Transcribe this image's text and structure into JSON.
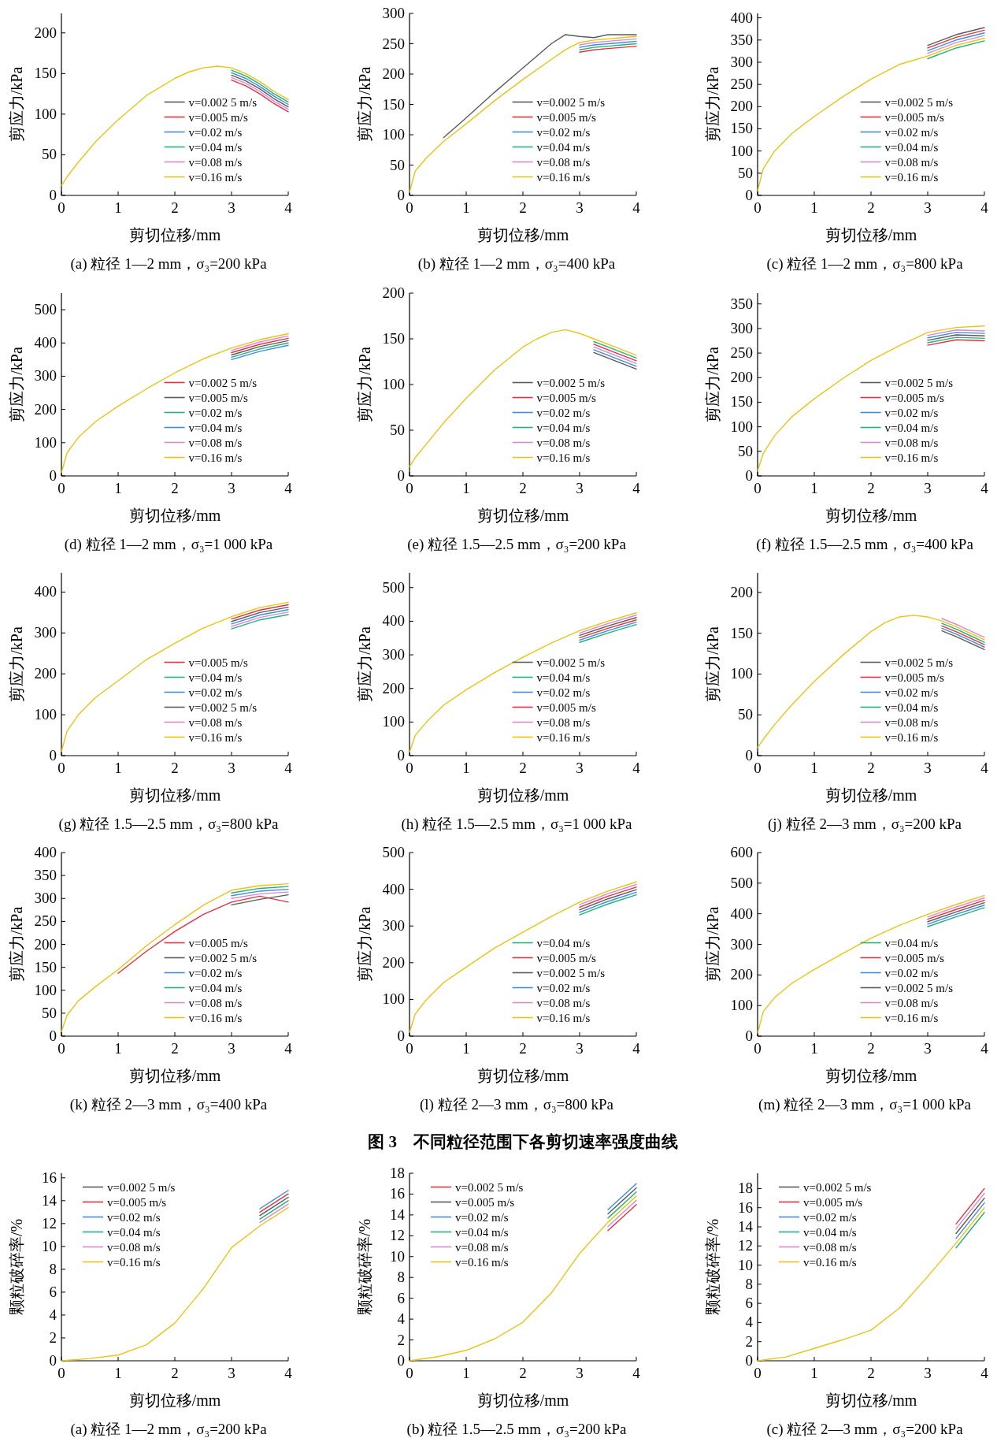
{
  "chart_data": [
    {
      "type": "line",
      "title": "(a) 粒径 1—2 mm，σ₃=200 kPa",
      "xlabel": "剪切位移/mm",
      "ylabel": "剪应力/kPa",
      "xlim": [
        0,
        4
      ],
      "ylim": [
        0,
        224
      ],
      "xticks": [
        0,
        1,
        2,
        3,
        4
      ],
      "yticks": [
        0,
        50,
        100,
        150,
        200
      ],
      "legend": "bottom right",
      "x": [
        0,
        0.1,
        0.3,
        0.6,
        1,
        1.5,
        2,
        2.25,
        2.5,
        2.75,
        3,
        3.25,
        3.5,
        3.75,
        4
      ],
      "series": [
        {
          "name": "v=0.002 5 m/s",
          "color": "#5a5a5a",
          "values": [
            null,
            null,
            null,
            null,
            null,
            null,
            null,
            null,
            null,
            null,
            148,
            141,
            131,
            119,
            109
          ]
        },
        {
          "name": "v=0.005 m/s",
          "color": "#e8303c",
          "values": [
            null,
            null,
            null,
            null,
            null,
            null,
            null,
            null,
            null,
            null,
            142,
            135,
            125,
            113,
            103
          ]
        },
        {
          "name": "v=0.02 m/s",
          "color": "#3c8ce0",
          "values": [
            null,
            null,
            null,
            null,
            null,
            null,
            null,
            null,
            null,
            null,
            151,
            144,
            134,
            122,
            112
          ]
        },
        {
          "name": "v=0.04 m/s",
          "color": "#20b27a",
          "values": [
            null,
            null,
            null,
            null,
            null,
            null,
            null,
            null,
            null,
            null,
            154,
            147,
            137,
            125,
            115
          ]
        },
        {
          "name": "v=0.08 m/s",
          "color": "#d88ad0",
          "values": [
            null,
            null,
            null,
            null,
            null,
            null,
            null,
            null,
            null,
            null,
            145,
            138,
            128,
            116,
            106
          ]
        },
        {
          "name": "v=0.16 m/s",
          "color": "#e8c414",
          "values": [
            12,
            23,
            41,
            66,
            93,
            123,
            144,
            152,
            157,
            159,
            157,
            150,
            140,
            128,
            118
          ]
        }
      ]
    },
    {
      "type": "line",
      "title": "(b) 粒径 1—2 mm，σ₃=400 kPa",
      "xlabel": "剪切位移/mm",
      "ylabel": "剪应力/kPa",
      "xlim": [
        0,
        4
      ],
      "ylim": [
        0,
        300
      ],
      "xticks": [
        0,
        1,
        2,
        3,
        4
      ],
      "yticks": [
        0,
        50,
        100,
        150,
        200,
        250,
        300
      ],
      "legend": "bottom right",
      "x": [
        0,
        0.1,
        0.3,
        0.6,
        1,
        1.5,
        2,
        2.5,
        2.75,
        3,
        3.25,
        3.5,
        3.75,
        4
      ],
      "series": [
        {
          "name": "v=0.002 5 m/s",
          "color": "#5a5a5a",
          "values": [
            null,
            null,
            null,
            95,
            128,
            170,
            210,
            250,
            265,
            262,
            260,
            265,
            265,
            265
          ]
        },
        {
          "name": "v=0.005 m/s",
          "color": "#e8303c",
          "values": [
            null,
            null,
            null,
            null,
            null,
            null,
            null,
            null,
            null,
            236,
            240,
            242,
            244,
            246
          ]
        },
        {
          "name": "v=0.02 m/s",
          "color": "#3c8ce0",
          "values": [
            null,
            null,
            null,
            null,
            null,
            null,
            null,
            null,
            null,
            244,
            248,
            250,
            252,
            254
          ]
        },
        {
          "name": "v=0.04 m/s",
          "color": "#20b27a",
          "values": [
            null,
            null,
            null,
            null,
            null,
            null,
            null,
            null,
            null,
            240,
            244,
            246,
            248,
            250
          ]
        },
        {
          "name": "v=0.08 m/s",
          "color": "#d88ad0",
          "values": [
            null,
            null,
            null,
            null,
            null,
            null,
            null,
            null,
            null,
            248,
            252,
            254,
            256,
            258
          ]
        },
        {
          "name": "v=0.16 m/s",
          "color": "#e8c414",
          "values": [
            5,
            40,
            62,
            89,
            118,
            156,
            191,
            224,
            240,
            252,
            256,
            258,
            260,
            262
          ]
        }
      ]
    },
    {
      "type": "line",
      "title": "(c) 粒径 1—2 mm，σ₃=800 kPa",
      "xlabel": "剪切位移/mm",
      "ylabel": "剪应力/kPa",
      "xlim": [
        0,
        4
      ],
      "ylim": [
        0,
        410
      ],
      "xticks": [
        0,
        1,
        2,
        3,
        4
      ],
      "yticks": [
        0,
        50,
        100,
        150,
        200,
        250,
        300,
        350,
        400
      ],
      "legend": "bottom right",
      "x": [
        0,
        0.1,
        0.3,
        0.6,
        1,
        1.5,
        2,
        2.5,
        3,
        3.5,
        4
      ],
      "series": [
        {
          "name": "v=0.002 5 m/s",
          "color": "#5a5a5a",
          "values": [
            null,
            null,
            null,
            null,
            null,
            null,
            null,
            null,
            338,
            362,
            378
          ]
        },
        {
          "name": "v=0.005 m/s",
          "color": "#e8303c",
          "values": [
            null,
            null,
            null,
            null,
            null,
            null,
            null,
            null,
            332,
            356,
            372
          ]
        },
        {
          "name": "v=0.02 m/s",
          "color": "#3c8ce0",
          "values": [
            null,
            null,
            null,
            null,
            null,
            null,
            null,
            null,
            326,
            350,
            366
          ]
        },
        {
          "name": "v=0.04 m/s",
          "color": "#20b27a",
          "values": [
            null,
            null,
            null,
            null,
            null,
            null,
            null,
            null,
            308,
            332,
            348
          ]
        },
        {
          "name": "v=0.08 m/s",
          "color": "#d88ad0",
          "values": [
            null,
            null,
            null,
            null,
            null,
            null,
            null,
            null,
            320,
            344,
            360
          ]
        },
        {
          "name": "v=0.16 m/s",
          "color": "#e8c414",
          "values": [
            10,
            60,
            100,
            139,
            178,
            222,
            262,
            295,
            314,
            338,
            354
          ]
        }
      ]
    },
    {
      "type": "line",
      "title": "(d) 粒径 1—2 mm，σ₃=1 000 kPa",
      "xlabel": "剪切位移/mm",
      "ylabel": "剪应力/kPa",
      "xlim": [
        0,
        4
      ],
      "ylim": [
        0,
        550
      ],
      "xticks": [
        0,
        1,
        2,
        3,
        4
      ],
      "yticks": [
        0,
        100,
        200,
        300,
        400,
        500
      ],
      "legend": "bottom right",
      "x": [
        0,
        0.1,
        0.3,
        0.6,
        1,
        1.5,
        2,
        2.5,
        3,
        3.5,
        4
      ],
      "series": [
        {
          "name": "v=0.002 5 m/s",
          "color": "#e8303c",
          "values": [
            null,
            null,
            null,
            null,
            null,
            null,
            null,
            null,
            371,
            396,
            414
          ]
        },
        {
          "name": "v=0.005 m/s",
          "color": "#5a5a5a",
          "values": [
            null,
            null,
            null,
            null,
            null,
            null,
            null,
            null,
            364,
            389,
            407
          ]
        },
        {
          "name": "v=0.02 m/s",
          "color": "#20b27a",
          "values": [
            null,
            null,
            null,
            null,
            null,
            null,
            null,
            null,
            357,
            382,
            400
          ]
        },
        {
          "name": "v=0.04 m/s",
          "color": "#3c8ce0",
          "values": [
            null,
            null,
            null,
            null,
            null,
            null,
            null,
            null,
            350,
            375,
            393
          ]
        },
        {
          "name": "v=0.08 m/s",
          "color": "#d88ad0",
          "values": [
            null,
            null,
            null,
            null,
            null,
            null,
            null,
            null,
            378,
            403,
            421
          ]
        },
        {
          "name": "v=0.16 m/s",
          "color": "#e8c414",
          "values": [
            10,
            70,
            116,
            163,
            210,
            262,
            310,
            352,
            385,
            410,
            428
          ]
        }
      ]
    },
    {
      "type": "line",
      "title": "(e) 粒径 1.5—2.5 mm，σ₃=200 kPa",
      "xlabel": "剪切位移/mm",
      "ylabel": "剪应力/kPa",
      "xlim": [
        0,
        4
      ],
      "ylim": [
        0,
        200
      ],
      "xticks": [
        0,
        1,
        2,
        3,
        4
      ],
      "yticks": [
        0,
        50,
        100,
        150,
        200
      ],
      "legend": "bottom right",
      "x": [
        0,
        0.1,
        0.3,
        0.6,
        1,
        1.5,
        2,
        2.25,
        2.5,
        2.75,
        3,
        3.25,
        3.5,
        3.75,
        4
      ],
      "series": [
        {
          "name": "v=0.002 5 m/s",
          "color": "#5a5a5a",
          "values": [
            null,
            null,
            null,
            null,
            null,
            null,
            null,
            null,
            null,
            null,
            null,
            135,
            129,
            123,
            117
          ]
        },
        {
          "name": "v=0.005 m/s",
          "color": "#e8303c",
          "values": [
            null,
            null,
            null,
            null,
            null,
            null,
            null,
            null,
            null,
            null,
            null,
            144,
            138,
            132,
            126
          ]
        },
        {
          "name": "v=0.02 m/s",
          "color": "#3c8ce0",
          "values": [
            null,
            null,
            null,
            null,
            null,
            null,
            null,
            null,
            null,
            null,
            null,
            138,
            132,
            126,
            120
          ]
        },
        {
          "name": "v=0.04 m/s",
          "color": "#20b27a",
          "values": [
            null,
            null,
            null,
            null,
            null,
            null,
            null,
            null,
            null,
            null,
            null,
            147,
            141,
            135,
            129
          ]
        },
        {
          "name": "v=0.08 m/s",
          "color": "#d88ad0",
          "values": [
            null,
            null,
            null,
            null,
            null,
            null,
            null,
            null,
            null,
            null,
            null,
            141,
            135,
            129,
            123
          ]
        },
        {
          "name": "v=0.16 m/s",
          "color": "#e8c414",
          "values": [
            10,
            20,
            35,
            58,
            85,
            116,
            141,
            150,
            157,
            160,
            156,
            150,
            144,
            138,
            132
          ]
        }
      ]
    },
    {
      "type": "line",
      "title": "(f) 粒径 1.5—2.5 mm，σ₃=400 kPa",
      "xlabel": "剪切位移/mm",
      "ylabel": "剪应力/kPa",
      "xlim": [
        0,
        4
      ],
      "ylim": [
        0,
        372
      ],
      "xticks": [
        0,
        1,
        2,
        3,
        4
      ],
      "yticks": [
        0,
        50,
        100,
        150,
        200,
        250,
        300,
        350
      ],
      "legend": "bottom right",
      "x": [
        0,
        0.1,
        0.3,
        0.6,
        1,
        1.5,
        2,
        2.5,
        3,
        3.5,
        4
      ],
      "series": [
        {
          "name": "v=0.002 5 m/s",
          "color": "#5a5a5a",
          "values": [
            null,
            null,
            null,
            null,
            null,
            null,
            null,
            null,
            276,
            287,
            285
          ]
        },
        {
          "name": "v=0.005 m/s",
          "color": "#e8303c",
          "values": [
            null,
            null,
            null,
            null,
            null,
            null,
            null,
            null,
            266,
            277,
            275
          ]
        },
        {
          "name": "v=0.02 m/s",
          "color": "#3c8ce0",
          "values": [
            null,
            null,
            null,
            null,
            null,
            null,
            null,
            null,
            281,
            292,
            290
          ]
        },
        {
          "name": "v=0.04 m/s",
          "color": "#20b27a",
          "values": [
            null,
            null,
            null,
            null,
            null,
            null,
            null,
            null,
            271,
            282,
            280
          ]
        },
        {
          "name": "v=0.08 m/s",
          "color": "#d88ad0",
          "values": [
            null,
            null,
            null,
            null,
            null,
            null,
            null,
            null,
            286,
            297,
            295
          ]
        },
        {
          "name": "v=0.16 m/s",
          "color": "#e8c414",
          "values": [
            10,
            46,
            82,
            120,
            157,
            198,
            235,
            265,
            292,
            302,
            305
          ]
        }
      ]
    },
    {
      "type": "line",
      "title": "(g) 粒径 1.5—2.5 mm，σ₃=800 kPa",
      "xlabel": "剪切位移/mm",
      "ylabel": "剪应力/kPa",
      "xlim": [
        0,
        4
      ],
      "ylim": [
        0,
        447
      ],
      "xticks": [
        0,
        1,
        2,
        3,
        4
      ],
      "yticks": [
        0,
        100,
        200,
        300,
        400
      ],
      "legend": "bottom right",
      "x": [
        0,
        0.1,
        0.3,
        0.6,
        1,
        1.5,
        2,
        2.5,
        3,
        3.5,
        4
      ],
      "series": [
        {
          "name": "v=0.005 m/s",
          "color": "#e8303c",
          "values": [
            null,
            null,
            null,
            null,
            null,
            null,
            null,
            null,
            334,
            356,
            369
          ]
        },
        {
          "name": "v=0.04 m/s",
          "color": "#20b27a",
          "values": [
            null,
            null,
            null,
            null,
            null,
            null,
            null,
            null,
            310,
            332,
            345
          ]
        },
        {
          "name": "v=0.02 m/s",
          "color": "#3c8ce0",
          "values": [
            null,
            null,
            null,
            null,
            null,
            null,
            null,
            null,
            322,
            344,
            357
          ]
        },
        {
          "name": "v=0.002 5 m/s",
          "color": "#5a5a5a",
          "values": [
            null,
            null,
            null,
            null,
            null,
            null,
            null,
            null,
            328,
            350,
            363
          ]
        },
        {
          "name": "v=0.08 m/s",
          "color": "#d88ad0",
          "values": [
            null,
            null,
            null,
            null,
            null,
            null,
            null,
            null,
            316,
            338,
            351
          ]
        },
        {
          "name": "v=0.16 m/s",
          "color": "#e8c414",
          "values": [
            10,
            60,
            100,
            142,
            183,
            235,
            275,
            312,
            340,
            362,
            375
          ]
        }
      ]
    },
    {
      "type": "line",
      "title": "(h) 粒径 1.5—2.5 mm，σ₃=1 000 kPa",
      "xlabel": "剪切位移/mm",
      "ylabel": "剪应力/kPa",
      "xlim": [
        0,
        4
      ],
      "ylim": [
        0,
        544
      ],
      "xticks": [
        0,
        1,
        2,
        3,
        4
      ],
      "yticks": [
        0,
        100,
        200,
        300,
        400,
        500
      ],
      "legend": "bottom right",
      "x": [
        0,
        0.1,
        0.3,
        0.6,
        1,
        1.5,
        2,
        2.5,
        3,
        3.5,
        4
      ],
      "series": [
        {
          "name": "v=0.002 5 m/s",
          "color": "#5a5a5a",
          "values": [
            null,
            null,
            null,
            null,
            null,
            null,
            null,
            null,
            358,
            386,
            411
          ]
        },
        {
          "name": "v=0.04 m/s",
          "color": "#20b27a",
          "values": [
            null,
            null,
            null,
            null,
            null,
            null,
            null,
            null,
            337,
            365,
            390
          ]
        },
        {
          "name": "v=0.02 m/s",
          "color": "#3c8ce0",
          "values": [
            null,
            null,
            null,
            null,
            null,
            null,
            null,
            null,
            344,
            372,
            397
          ]
        },
        {
          "name": "v=0.005 m/s",
          "color": "#e8303c",
          "values": [
            null,
            null,
            null,
            null,
            null,
            null,
            null,
            null,
            351,
            379,
            404
          ]
        },
        {
          "name": "v=0.08 m/s",
          "color": "#d88ad0",
          "values": [
            null,
            null,
            null,
            null,
            null,
            null,
            null,
            null,
            365,
            393,
            418
          ]
        },
        {
          "name": "v=0.16 m/s",
          "color": "#e8c414",
          "values": [
            10,
            60,
            100,
            150,
            196,
            247,
            293,
            335,
            372,
            400,
            425
          ]
        }
      ]
    },
    {
      "type": "line",
      "title": "(j) 粒径 2—3 mm，σ₃=200 kPa",
      "xlabel": "剪切位移/mm",
      "ylabel": "剪应力/kPa",
      "xlim": [
        0,
        4
      ],
      "ylim": [
        0,
        224
      ],
      "xticks": [
        0,
        1,
        2,
        3,
        4
      ],
      "yticks": [
        0,
        50,
        100,
        150,
        200
      ],
      "legend": "bottom right",
      "x": [
        0,
        0.1,
        0.3,
        0.6,
        1,
        1.5,
        2,
        2.25,
        2.5,
        2.75,
        3,
        3.25,
        3.5,
        3.75,
        4
      ],
      "series": [
        {
          "name": "v=0.002 5 m/s",
          "color": "#5a5a5a",
          "values": [
            null,
            null,
            null,
            null,
            null,
            null,
            null,
            null,
            null,
            null,
            null,
            153,
            146,
            138,
            130
          ]
        },
        {
          "name": "v=0.005 m/s",
          "color": "#e8303c",
          "values": [
            null,
            null,
            null,
            null,
            null,
            null,
            null,
            null,
            null,
            null,
            null,
            159,
            152,
            144,
            136
          ]
        },
        {
          "name": "v=0.02 m/s",
          "color": "#3c8ce0",
          "values": [
            null,
            null,
            null,
            null,
            null,
            null,
            null,
            null,
            null,
            null,
            null,
            156,
            149,
            141,
            133
          ]
        },
        {
          "name": "v=0.04 m/s",
          "color": "#20b27a",
          "values": [
            null,
            null,
            null,
            null,
            null,
            null,
            null,
            null,
            null,
            null,
            null,
            162,
            155,
            147,
            139
          ]
        },
        {
          "name": "v=0.08 m/s",
          "color": "#d88ad0",
          "values": [
            null,
            null,
            null,
            null,
            null,
            null,
            null,
            null,
            null,
            null,
            null,
            168,
            161,
            153,
            145
          ]
        },
        {
          "name": "v=0.16 m/s",
          "color": "#e8c414",
          "values": [
            10,
            20,
            38,
            62,
            91,
            123,
            152,
            163,
            170,
            172,
            170,
            165,
            158,
            150,
            142
          ]
        }
      ]
    },
    {
      "type": "line",
      "title": "(k) 粒径 2—3 mm，σ₃=400 kPa",
      "xlabel": "剪切位移/mm",
      "ylabel": "剪应力/kPa",
      "xlim": [
        0,
        4
      ],
      "ylim": [
        0,
        400
      ],
      "xticks": [
        0,
        1,
        2,
        3,
        4
      ],
      "yticks": [
        0,
        50,
        100,
        150,
        200,
        250,
        300,
        350,
        400
      ],
      "legend": "bottom right",
      "x": [
        0,
        0.1,
        0.3,
        0.6,
        1,
        1.5,
        2,
        2.5,
        3,
        3.5,
        4
      ],
      "series": [
        {
          "name": "v=0.005 m/s",
          "color": "#e8303c",
          "values": [
            null,
            null,
            null,
            null,
            137,
            185,
            228,
            265,
            292,
            305,
            292
          ]
        },
        {
          "name": "v=0.002 5 m/s",
          "color": "#5a5a5a",
          "values": [
            null,
            null,
            null,
            null,
            null,
            null,
            null,
            null,
            286,
            298,
            308
          ]
        },
        {
          "name": "v=0.02 m/s",
          "color": "#3c8ce0",
          "values": [
            null,
            null,
            null,
            null,
            null,
            null,
            null,
            null,
            306,
            316,
            320
          ]
        },
        {
          "name": "v=0.04 m/s",
          "color": "#20b27a",
          "values": [
            null,
            null,
            null,
            null,
            null,
            null,
            null,
            null,
            312,
            322,
            326
          ]
        },
        {
          "name": "v=0.08 m/s",
          "color": "#d88ad0",
          "values": [
            null,
            null,
            null,
            null,
            null,
            null,
            null,
            null,
            300,
            310,
            314
          ]
        },
        {
          "name": "v=0.16 m/s",
          "color": "#e8c414",
          "values": [
            10,
            46,
            77,
            108,
            145,
            197,
            243,
            285,
            318,
            328,
            332
          ]
        }
      ]
    },
    {
      "type": "line",
      "title": "(l) 粒径 2—3 mm，σ₃=800 kPa",
      "xlabel": "剪切位移/mm",
      "ylabel": "剪应力/kPa",
      "xlim": [
        0,
        4
      ],
      "ylim": [
        0,
        500
      ],
      "xticks": [
        0,
        1,
        2,
        3,
        4
      ],
      "yticks": [
        0,
        100,
        200,
        300,
        400,
        500
      ],
      "legend": "bottom right",
      "annotations": [
        "图 3　不同粒径范围下各剪切速率强度曲线"
      ],
      "x": [
        0,
        0.1,
        0.3,
        0.6,
        1,
        1.5,
        2,
        2.5,
        3,
        3.5,
        4
      ],
      "series": [
        {
          "name": "v=0.04 m/s",
          "color": "#20b27a",
          "values": [
            null,
            null,
            null,
            null,
            null,
            null,
            null,
            null,
            330,
            360,
            385
          ]
        },
        {
          "name": "v=0.005 m/s",
          "color": "#e8303c",
          "values": [
            null,
            null,
            null,
            null,
            null,
            null,
            null,
            null,
            351,
            381,
            406
          ]
        },
        {
          "name": "v=0.002 5 m/s",
          "color": "#5a5a5a",
          "values": [
            null,
            null,
            null,
            null,
            null,
            null,
            null,
            null,
            344,
            374,
            399
          ]
        },
        {
          "name": "v=0.02 m/s",
          "color": "#3c8ce0",
          "values": [
            null,
            null,
            null,
            null,
            null,
            null,
            null,
            null,
            337,
            367,
            392
          ]
        },
        {
          "name": "v=0.08 m/s",
          "color": "#d88ad0",
          "values": [
            null,
            null,
            null,
            null,
            null,
            null,
            null,
            null,
            358,
            388,
            413
          ]
        },
        {
          "name": "v=0.16 m/s",
          "color": "#e8c414",
          "values": [
            10,
            60,
            100,
            146,
            188,
            240,
            283,
            326,
            365,
            395,
            420
          ]
        }
      ]
    },
    {
      "type": "line",
      "title": "(m) 粒径 2—3 mm，σ₃=1 000 kPa",
      "xlabel": "剪切位移/mm",
      "ylabel": "剪应力/kPa",
      "xlim": [
        0,
        4
      ],
      "ylim": [
        0,
        600
      ],
      "xticks": [
        0,
        1,
        2,
        3,
        4
      ],
      "yticks": [
        0,
        100,
        200,
        300,
        400,
        500,
        600
      ],
      "legend": "bottom right",
      "x": [
        0,
        0.1,
        0.3,
        0.6,
        1,
        1.5,
        2,
        2.5,
        3,
        3.5,
        4
      ],
      "series": [
        {
          "name": "v=0.04 m/s",
          "color": "#20b27a",
          "values": [
            null,
            null,
            null,
            null,
            null,
            null,
            null,
            null,
            358,
            390,
            420
          ]
        },
        {
          "name": "v=0.005 m/s",
          "color": "#e8303c",
          "values": [
            null,
            null,
            null,
            null,
            null,
            null,
            null,
            null,
            382,
            414,
            444
          ]
        },
        {
          "name": "v=0.02 m/s",
          "color": "#3c8ce0",
          "values": [
            null,
            null,
            null,
            null,
            null,
            null,
            null,
            null,
            366,
            398,
            428
          ]
        },
        {
          "name": "v=0.002 5 m/s",
          "color": "#5a5a5a",
          "values": [
            null,
            null,
            null,
            null,
            null,
            null,
            null,
            null,
            374,
            406,
            436
          ]
        },
        {
          "name": "v=0.08 m/s",
          "color": "#d88ad0",
          "values": [
            null,
            null,
            null,
            null,
            null,
            null,
            null,
            null,
            390,
            422,
            452
          ]
        },
        {
          "name": "v=0.16 m/s",
          "color": "#e8c414",
          "values": [
            10,
            80,
            126,
            172,
            218,
            270,
            320,
            362,
            398,
            430,
            460
          ]
        }
      ]
    },
    {
      "type": "line",
      "title": "(a) 粒径 1—2 mm，σ₃=200 kPa",
      "xlabel": "剪切位移/mm",
      "ylabel": "颗粒破碎率/%",
      "xlim": [
        0,
        4
      ],
      "ylim": [
        0,
        16.4
      ],
      "xticks": [
        0,
        1,
        2,
        3,
        4
      ],
      "yticks": [
        0,
        2,
        4,
        6,
        8,
        10,
        12,
        14,
        16
      ],
      "legend": "top left",
      "x": [
        0,
        0.5,
        1,
        1.5,
        2,
        2.5,
        3,
        3.5,
        4
      ],
      "series": [
        {
          "name": "v=0.002 5 m/s",
          "color": "#5a5a5a",
          "values": [
            null,
            null,
            null,
            null,
            null,
            null,
            null,
            12.7,
            14.3
          ]
        },
        {
          "name": "v=0.005 m/s",
          "color": "#e8303c",
          "values": [
            null,
            null,
            null,
            null,
            null,
            null,
            null,
            13.0,
            14.6
          ]
        },
        {
          "name": "v=0.02 m/s",
          "color": "#3c8ce0",
          "values": [
            null,
            null,
            null,
            null,
            null,
            null,
            null,
            13.3,
            14.9
          ]
        },
        {
          "name": "v=0.04 m/s",
          "color": "#20b27a",
          "values": [
            null,
            null,
            null,
            null,
            null,
            null,
            null,
            12.4,
            14.0
          ]
        },
        {
          "name": "v=0.08 m/s",
          "color": "#d88ad0",
          "values": [
            null,
            null,
            null,
            null,
            null,
            null,
            null,
            12.1,
            13.7
          ]
        },
        {
          "name": "v=0.16 m/s",
          "color": "#e8c414",
          "values": [
            0,
            0.2,
            0.5,
            1.4,
            3.3,
            6.3,
            9.9,
            11.8,
            13.4
          ]
        }
      ]
    },
    {
      "type": "line",
      "title": "(b) 粒径 1.5—2.5 mm，σ₃=200 kPa",
      "xlabel": "剪切位移/mm",
      "ylabel": "颗粒破碎率/%",
      "xlim": [
        0,
        4
      ],
      "ylim": [
        0,
        18
      ],
      "xticks": [
        0,
        1,
        2,
        3,
        4
      ],
      "yticks": [
        0,
        2,
        4,
        6,
        8,
        10,
        12,
        14,
        16,
        18
      ],
      "legend": "top left",
      "x": [
        0,
        0.5,
        1,
        1.5,
        2,
        2.5,
        3,
        3.5,
        4
      ],
      "series": [
        {
          "name": "v=0.002 5 m/s",
          "color": "#e8303c",
          "values": [
            null,
            null,
            null,
            null,
            null,
            null,
            null,
            12.5,
            15.0
          ]
        },
        {
          "name": "v=0.005 m/s",
          "color": "#5a5a5a",
          "values": [
            null,
            null,
            null,
            null,
            null,
            null,
            null,
            14.1,
            16.6
          ]
        },
        {
          "name": "v=0.02 m/s",
          "color": "#3c8ce0",
          "values": [
            null,
            null,
            null,
            null,
            null,
            null,
            null,
            14.5,
            17.0
          ]
        },
        {
          "name": "v=0.04 m/s",
          "color": "#20b27a",
          "values": [
            null,
            null,
            null,
            null,
            null,
            null,
            null,
            13.7,
            16.2
          ]
        },
        {
          "name": "v=0.08 m/s",
          "color": "#d88ad0",
          "values": [
            null,
            null,
            null,
            null,
            null,
            null,
            null,
            12.9,
            15.4
          ]
        },
        {
          "name": "v=0.16 m/s",
          "color": "#e8c414",
          "values": [
            0,
            0.4,
            1.0,
            2.1,
            3.7,
            6.5,
            10.3,
            13.3,
            15.8
          ]
        }
      ]
    },
    {
      "type": "line",
      "title": "(c) 粒径 2—3 mm，σ₃=200 kPa",
      "xlabel": "剪切位移/mm",
      "ylabel": "颗粒破碎率/%",
      "xlim": [
        0,
        4
      ],
      "ylim": [
        0,
        19.6
      ],
      "xticks": [
        0,
        1,
        2,
        3,
        4
      ],
      "yticks": [
        0,
        2,
        4,
        6,
        8,
        10,
        12,
        14,
        16,
        18
      ],
      "legend": "top left",
      "x": [
        0,
        0.5,
        1,
        1.5,
        2,
        2.5,
        3,
        3.5,
        4
      ],
      "series": [
        {
          "name": "v=0.002 5 m/s",
          "color": "#5a5a5a",
          "values": [
            null,
            null,
            null,
            null,
            null,
            null,
            null,
            13.3,
            17.0
          ]
        },
        {
          "name": "v=0.005 m/s",
          "color": "#e8303c",
          "values": [
            null,
            null,
            null,
            null,
            null,
            null,
            null,
            14.3,
            18.0
          ]
        },
        {
          "name": "v=0.02 m/s",
          "color": "#3c8ce0",
          "values": [
            null,
            null,
            null,
            null,
            null,
            null,
            null,
            12.8,
            16.5
          ]
        },
        {
          "name": "v=0.04 m/s",
          "color": "#20b27a",
          "values": [
            null,
            null,
            null,
            null,
            null,
            null,
            null,
            11.8,
            15.5
          ]
        },
        {
          "name": "v=0.08 m/s",
          "color": "#d88ad0",
          "values": [
            null,
            null,
            null,
            null,
            null,
            null,
            null,
            13.8,
            17.5
          ]
        },
        {
          "name": "v=0.16 m/s",
          "color": "#e8c414",
          "values": [
            0,
            0.4,
            1.3,
            2.2,
            3.2,
            5.5,
            8.8,
            12.3,
            16.0
          ]
        }
      ]
    }
  ]
}
